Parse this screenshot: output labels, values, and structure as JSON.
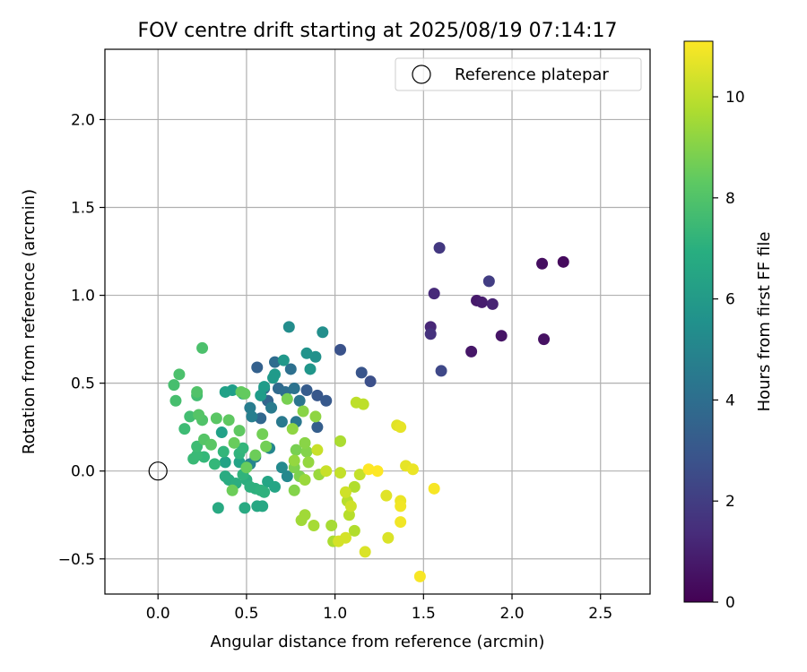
{
  "chart_data": {
    "type": "scatter",
    "title": "FOV centre drift starting at 2025/08/19 07:14:17",
    "xlabel": "Angular distance from reference (arcmin)",
    "ylabel": "Rotation from reference (arcmin)",
    "xlim": [
      -0.3,
      2.78
    ],
    "ylim": [
      -0.7,
      2.4
    ],
    "xticks": [
      0.0,
      0.5,
      1.0,
      1.5,
      2.0,
      2.5
    ],
    "yticks": [
      -0.5,
      0.0,
      0.5,
      1.0,
      1.5,
      2.0
    ],
    "xtick_labels": [
      "0.0",
      "0.5",
      "1.0",
      "1.5",
      "2.0",
      "2.5"
    ],
    "ytick_labels": [
      "−0.5",
      "0.0",
      "0.5",
      "1.0",
      "1.5",
      "2.0"
    ],
    "grid": true,
    "legend": {
      "position": "top-right",
      "entries": [
        "Reference platepar"
      ]
    },
    "reference_point": {
      "x": 0.0,
      "y": 0.0,
      "label": "Reference platepar"
    },
    "colorbar": {
      "label": "Hours from first FF file",
      "colormap": "viridis",
      "range": [
        0,
        11.1
      ],
      "ticks": [
        0,
        2,
        4,
        6,
        8,
        10
      ],
      "tick_labels": [
        "0",
        "2",
        "4",
        "6",
        "8",
        "10"
      ]
    },
    "points": [
      {
        "x": 2.29,
        "y": 1.19,
        "h": 0.3
      },
      {
        "x": 2.17,
        "y": 1.18,
        "h": 0.4
      },
      {
        "x": 2.18,
        "y": 0.75,
        "h": 0.5
      },
      {
        "x": 1.94,
        "y": 0.77,
        "h": 0.6
      },
      {
        "x": 1.77,
        "y": 0.68,
        "h": 0.7
      },
      {
        "x": 1.8,
        "y": 0.97,
        "h": 0.8
      },
      {
        "x": 1.83,
        "y": 0.96,
        "h": 0.9
      },
      {
        "x": 1.89,
        "y": 0.95,
        "h": 1.1
      },
      {
        "x": 1.54,
        "y": 0.82,
        "h": 1.2
      },
      {
        "x": 1.56,
        "y": 1.01,
        "h": 1.3
      },
      {
        "x": 1.54,
        "y": 0.78,
        "h": 1.6
      },
      {
        "x": 1.59,
        "y": 1.27,
        "h": 1.8
      },
      {
        "x": 1.87,
        "y": 1.08,
        "h": 2.0
      },
      {
        "x": 1.6,
        "y": 0.57,
        "h": 2.4
      },
      {
        "x": 1.2,
        "y": 0.51,
        "h": 2.7
      },
      {
        "x": 1.03,
        "y": 0.69,
        "h": 2.8
      },
      {
        "x": 1.15,
        "y": 0.56,
        "h": 2.9
      },
      {
        "x": 0.9,
        "y": 0.43,
        "h": 3.0
      },
      {
        "x": 0.95,
        "y": 0.4,
        "h": 3.1
      },
      {
        "x": 0.84,
        "y": 0.46,
        "h": 3.2
      },
      {
        "x": 0.9,
        "y": 0.25,
        "h": 3.3
      },
      {
        "x": 0.56,
        "y": 0.59,
        "h": 3.4
      },
      {
        "x": 0.6,
        "y": 0.47,
        "h": 3.5
      },
      {
        "x": 0.62,
        "y": 0.4,
        "h": 3.6
      },
      {
        "x": 0.58,
        "y": 0.3,
        "h": 3.7
      },
      {
        "x": 0.68,
        "y": 0.47,
        "h": 3.8
      },
      {
        "x": 0.66,
        "y": 0.62,
        "h": 3.9
      },
      {
        "x": 0.72,
        "y": 0.45,
        "h": 4.0
      },
      {
        "x": 0.75,
        "y": 0.58,
        "h": 4.1
      },
      {
        "x": 0.77,
        "y": 0.47,
        "h": 4.2
      },
      {
        "x": 0.8,
        "y": 0.4,
        "h": 4.3
      },
      {
        "x": 0.78,
        "y": 0.28,
        "h": 4.4
      },
      {
        "x": 0.7,
        "y": 0.28,
        "h": 4.5
      },
      {
        "x": 0.64,
        "y": 0.36,
        "h": 4.6
      },
      {
        "x": 0.52,
        "y": 0.36,
        "h": 4.7
      },
      {
        "x": 0.53,
        "y": 0.31,
        "h": 4.8
      },
      {
        "x": 0.55,
        "y": 0.08,
        "h": 4.9
      },
      {
        "x": 0.52,
        "y": 0.04,
        "h": 5.0
      },
      {
        "x": 0.63,
        "y": 0.13,
        "h": 5.1
      },
      {
        "x": 0.73,
        "y": -0.03,
        "h": 5.2
      },
      {
        "x": 0.7,
        "y": 0.02,
        "h": 5.3
      },
      {
        "x": 0.74,
        "y": 0.82,
        "h": 5.4
      },
      {
        "x": 0.93,
        "y": 0.79,
        "h": 5.5
      },
      {
        "x": 0.89,
        "y": 0.65,
        "h": 5.6
      },
      {
        "x": 0.84,
        "y": 0.67,
        "h": 5.7
      },
      {
        "x": 0.86,
        "y": 0.58,
        "h": 5.8
      },
      {
        "x": 0.71,
        "y": 0.63,
        "h": 5.9
      },
      {
        "x": 0.66,
        "y": 0.55,
        "h": 6.0
      },
      {
        "x": 0.65,
        "y": 0.53,
        "h": 6.0
      },
      {
        "x": 0.6,
        "y": 0.48,
        "h": 6.1
      },
      {
        "x": 0.58,
        "y": 0.43,
        "h": 6.1
      },
      {
        "x": 0.48,
        "y": 0.44,
        "h": 6.2
      },
      {
        "x": 0.42,
        "y": 0.46,
        "h": 6.2
      },
      {
        "x": 0.38,
        "y": 0.45,
        "h": 6.3
      },
      {
        "x": 0.36,
        "y": 0.22,
        "h": 6.3
      },
      {
        "x": 0.38,
        "y": 0.05,
        "h": 6.4
      },
      {
        "x": 0.46,
        "y": 0.05,
        "h": 6.4
      },
      {
        "x": 0.62,
        "y": -0.06,
        "h": 6.5
      },
      {
        "x": 0.66,
        "y": -0.09,
        "h": 6.5
      },
      {
        "x": 0.56,
        "y": -0.2,
        "h": 6.6
      },
      {
        "x": 0.59,
        "y": -0.2,
        "h": 6.6
      },
      {
        "x": 0.49,
        "y": -0.21,
        "h": 6.7
      },
      {
        "x": 0.34,
        "y": -0.21,
        "h": 6.7
      },
      {
        "x": 0.38,
        "y": -0.03,
        "h": 6.8
      },
      {
        "x": 0.4,
        "y": -0.05,
        "h": 6.8
      },
      {
        "x": 0.44,
        "y": -0.07,
        "h": 6.9
      },
      {
        "x": 0.5,
        "y": -0.05,
        "h": 6.9
      },
      {
        "x": 0.52,
        "y": -0.09,
        "h": 7.0
      },
      {
        "x": 0.55,
        "y": -0.1,
        "h": 7.0
      },
      {
        "x": 0.6,
        "y": -0.12,
        "h": 7.1
      },
      {
        "x": 0.58,
        "y": -0.11,
        "h": 7.1
      },
      {
        "x": 0.48,
        "y": -0.02,
        "h": 7.2
      },
      {
        "x": 0.46,
        "y": 0.1,
        "h": 7.2
      },
      {
        "x": 0.48,
        "y": 0.13,
        "h": 7.3
      },
      {
        "x": 0.37,
        "y": 0.11,
        "h": 7.3
      },
      {
        "x": 0.32,
        "y": 0.04,
        "h": 7.4
      },
      {
        "x": 0.26,
        "y": 0.08,
        "h": 7.4
      },
      {
        "x": 0.2,
        "y": 0.07,
        "h": 7.5
      },
      {
        "x": 0.22,
        "y": 0.09,
        "h": 7.5
      },
      {
        "x": 0.22,
        "y": 0.14,
        "h": 7.6
      },
      {
        "x": 0.15,
        "y": 0.24,
        "h": 7.6
      },
      {
        "x": 0.22,
        "y": 0.43,
        "h": 7.7
      },
      {
        "x": 0.18,
        "y": 0.31,
        "h": 7.7
      },
      {
        "x": 0.1,
        "y": 0.4,
        "h": 7.8
      },
      {
        "x": 0.09,
        "y": 0.49,
        "h": 7.8
      },
      {
        "x": 0.12,
        "y": 0.55,
        "h": 7.9
      },
      {
        "x": 0.25,
        "y": 0.7,
        "h": 7.9
      },
      {
        "x": 0.22,
        "y": 0.45,
        "h": 8.0
      },
      {
        "x": 0.25,
        "y": 0.29,
        "h": 8.0
      },
      {
        "x": 0.23,
        "y": 0.32,
        "h": 8.1
      },
      {
        "x": 0.26,
        "y": 0.18,
        "h": 8.1
      },
      {
        "x": 0.3,
        "y": 0.15,
        "h": 8.2
      },
      {
        "x": 0.33,
        "y": 0.3,
        "h": 8.2
      },
      {
        "x": 0.4,
        "y": 0.29,
        "h": 8.3
      },
      {
        "x": 0.46,
        "y": 0.23,
        "h": 8.3
      },
      {
        "x": 0.49,
        "y": 0.44,
        "h": 8.4
      },
      {
        "x": 0.47,
        "y": 0.45,
        "h": 8.4
      },
      {
        "x": 0.43,
        "y": 0.16,
        "h": 8.5
      },
      {
        "x": 0.5,
        "y": 0.02,
        "h": 8.5
      },
      {
        "x": 0.42,
        "y": -0.11,
        "h": 8.6
      },
      {
        "x": 0.55,
        "y": 0.09,
        "h": 8.6
      },
      {
        "x": 0.61,
        "y": 0.14,
        "h": 8.7
      },
      {
        "x": 0.59,
        "y": 0.21,
        "h": 8.7
      },
      {
        "x": 0.73,
        "y": 0.41,
        "h": 8.8
      },
      {
        "x": 0.78,
        "y": 0.12,
        "h": 8.8
      },
      {
        "x": 0.77,
        "y": 0.02,
        "h": 8.9
      },
      {
        "x": 0.8,
        "y": -0.03,
        "h": 8.9
      },
      {
        "x": 0.77,
        "y": -0.11,
        "h": 9.0
      },
      {
        "x": 0.84,
        "y": 0.11,
        "h": 9.0
      },
      {
        "x": 0.83,
        "y": 0.16,
        "h": 9.1
      },
      {
        "x": 0.82,
        "y": 0.34,
        "h": 9.1
      },
      {
        "x": 0.89,
        "y": 0.31,
        "h": 9.2
      },
      {
        "x": 0.76,
        "y": 0.24,
        "h": 9.2
      },
      {
        "x": 0.77,
        "y": 0.06,
        "h": 9.3
      },
      {
        "x": 0.85,
        "y": 0.05,
        "h": 9.3
      },
      {
        "x": 0.83,
        "y": -0.05,
        "h": 9.4
      },
      {
        "x": 0.91,
        "y": -0.02,
        "h": 9.4
      },
      {
        "x": 0.81,
        "y": -0.28,
        "h": 9.5
      },
      {
        "x": 0.83,
        "y": -0.25,
        "h": 9.5
      },
      {
        "x": 0.88,
        "y": -0.31,
        "h": 9.6
      },
      {
        "x": 0.98,
        "y": -0.31,
        "h": 9.6
      },
      {
        "x": 0.99,
        "y": -0.4,
        "h": 9.7
      },
      {
        "x": 1.03,
        "y": 0.17,
        "h": 9.7
      },
      {
        "x": 1.11,
        "y": -0.09,
        "h": 9.8
      },
      {
        "x": 1.11,
        "y": -0.34,
        "h": 9.8
      },
      {
        "x": 1.07,
        "y": -0.17,
        "h": 9.9
      },
      {
        "x": 1.08,
        "y": -0.25,
        "h": 9.9
      },
      {
        "x": 1.12,
        "y": 0.39,
        "h": 10.0
      },
      {
        "x": 1.16,
        "y": 0.38,
        "h": 10.0
      },
      {
        "x": 1.14,
        "y": -0.02,
        "h": 10.1
      },
      {
        "x": 1.03,
        "y": -0.01,
        "h": 10.1
      },
      {
        "x": 0.95,
        "y": 0.0,
        "h": 10.2
      },
      {
        "x": 0.9,
        "y": 0.12,
        "h": 10.2
      },
      {
        "x": 1.06,
        "y": -0.12,
        "h": 10.3
      },
      {
        "x": 1.09,
        "y": -0.2,
        "h": 10.3
      },
      {
        "x": 1.02,
        "y": -0.4,
        "h": 10.4
      },
      {
        "x": 1.06,
        "y": -0.38,
        "h": 10.4
      },
      {
        "x": 1.17,
        "y": -0.46,
        "h": 10.5
      },
      {
        "x": 1.3,
        "y": -0.38,
        "h": 10.5
      },
      {
        "x": 1.29,
        "y": -0.14,
        "h": 10.6
      },
      {
        "x": 1.35,
        "y": 0.26,
        "h": 10.6
      },
      {
        "x": 1.37,
        "y": 0.25,
        "h": 10.7
      },
      {
        "x": 1.4,
        "y": 0.03,
        "h": 10.7
      },
      {
        "x": 1.44,
        "y": 0.01,
        "h": 10.8
      },
      {
        "x": 1.37,
        "y": -0.17,
        "h": 10.8
      },
      {
        "x": 1.37,
        "y": -0.2,
        "h": 10.9
      },
      {
        "x": 1.37,
        "y": -0.29,
        "h": 10.9
      },
      {
        "x": 1.48,
        "y": -0.6,
        "h": 11.0
      },
      {
        "x": 1.56,
        "y": -0.1,
        "h": 11.0
      },
      {
        "x": 1.19,
        "y": 0.01,
        "h": 11.1
      },
      {
        "x": 1.24,
        "y": 0.0,
        "h": 11.1
      }
    ]
  }
}
